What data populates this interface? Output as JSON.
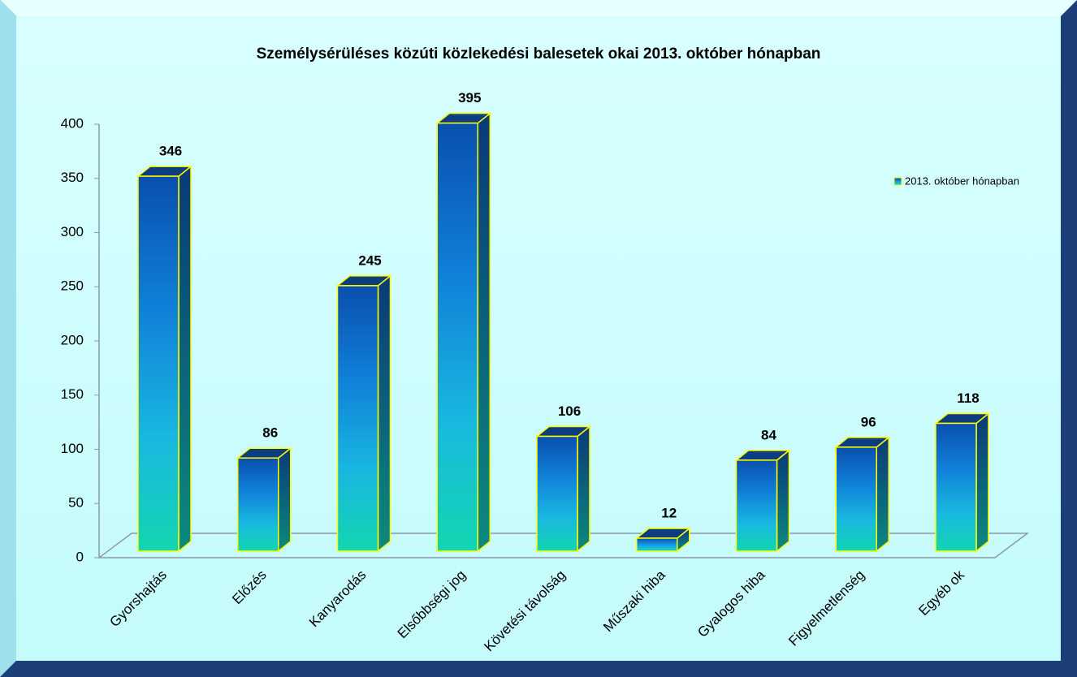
{
  "chart_data": {
    "type": "bar3d",
    "title": "Személysérüléses közúti közlekedési balesetek okai 2013. október hónapban",
    "categories": [
      "Gyorshajtás",
      "Előzés",
      "Kanyarodás",
      "Elsőbbségi jog",
      "Követési távolság",
      "Műszaki hiba",
      "Gyalogos hiba",
      "Figyelmetlenség",
      "Egyéb ok"
    ],
    "series": [
      {
        "name": "2013. október hónapban",
        "color": "#1aa7e0",
        "values": [
          346,
          86,
          245,
          395,
          106,
          12,
          84,
          96,
          118
        ]
      }
    ],
    "ylim": [
      0,
      400
    ],
    "yticks": [
      0,
      50,
      100,
      150,
      200,
      250,
      300,
      350,
      400
    ],
    "legend": "right"
  }
}
